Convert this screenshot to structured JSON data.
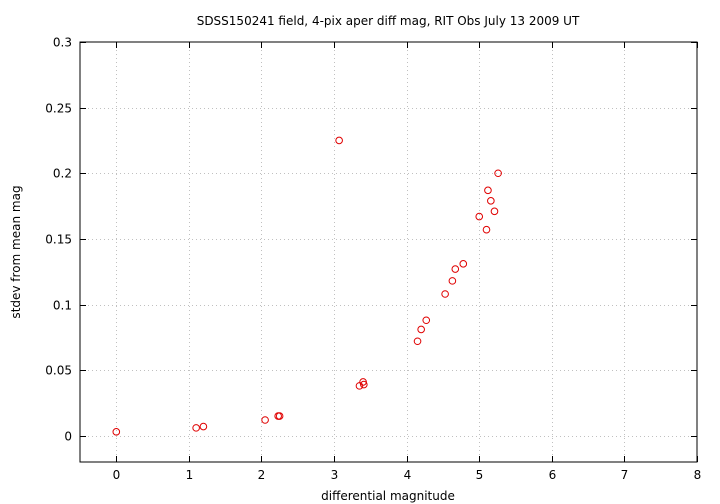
{
  "chart_data": {
    "type": "scatter",
    "title": "SDSS150241 field,  4-pix aper diff mag, RIT Obs July 13 2009 UT",
    "xlabel": "differential magnitude",
    "ylabel": "stdev from mean mag",
    "xlim": [
      -0.5,
      8
    ],
    "ylim": [
      -0.02,
      0.3
    ],
    "x_ticks": [
      0,
      1,
      2,
      3,
      4,
      5,
      6,
      7,
      8
    ],
    "x_tick_labels": [
      "0",
      "1",
      "2",
      "3",
      "4",
      "5",
      "6",
      "7",
      "8"
    ],
    "y_ticks": [
      0,
      0.05,
      0.1,
      0.15,
      0.2,
      0.25,
      0.3
    ],
    "y_tick_labels": [
      "0",
      "0.05",
      "0.1",
      "0.15",
      "0.2",
      "0.25",
      "0.3"
    ],
    "grid": true,
    "marker": "open-circle",
    "marker_color": "#e00000",
    "series": [
      {
        "points": [
          [
            0.0,
            0.003
          ],
          [
            1.1,
            0.006
          ],
          [
            1.2,
            0.007
          ],
          [
            2.05,
            0.012
          ],
          [
            2.23,
            0.015
          ],
          [
            2.25,
            0.015
          ],
          [
            3.07,
            0.225
          ],
          [
            3.35,
            0.038
          ],
          [
            3.4,
            0.041
          ],
          [
            3.41,
            0.039
          ],
          [
            4.15,
            0.072
          ],
          [
            4.2,
            0.081
          ],
          [
            4.27,
            0.088
          ],
          [
            4.53,
            0.108
          ],
          [
            4.63,
            0.118
          ],
          [
            4.67,
            0.127
          ],
          [
            4.78,
            0.131
          ],
          [
            5.0,
            0.167
          ],
          [
            5.1,
            0.157
          ],
          [
            5.12,
            0.187
          ],
          [
            5.16,
            0.179
          ],
          [
            5.21,
            0.171
          ],
          [
            5.26,
            0.2
          ]
        ]
      }
    ]
  }
}
